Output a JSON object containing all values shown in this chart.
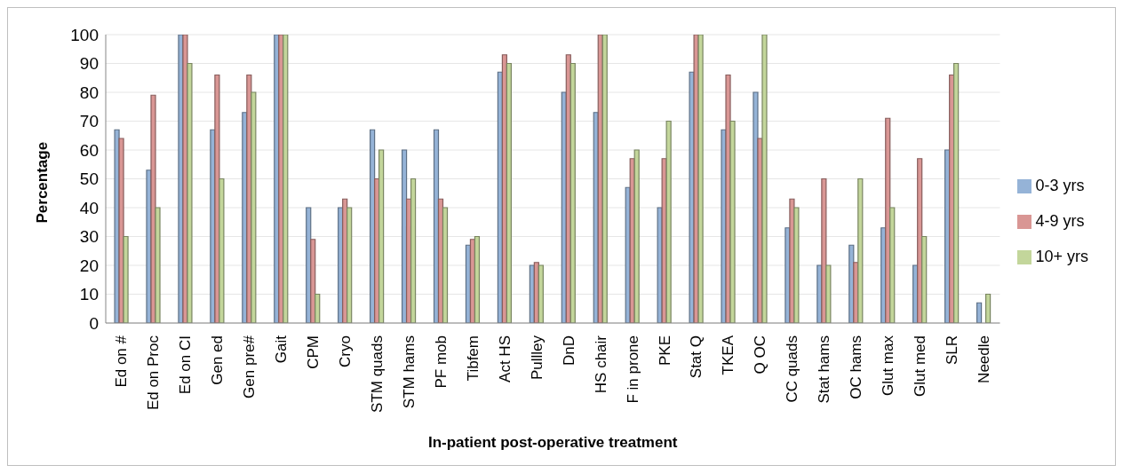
{
  "chart_data": {
    "type": "bar",
    "xlabel": "In-patient post-operative treatment",
    "ylabel": "Percentage",
    "categories": [
      "Ed on #",
      "Ed on Proc",
      "Ed on CI",
      "Gen ed",
      "Gen pre#",
      "Gait",
      "CPM",
      "Cryo",
      "STM quads",
      "STM hams",
      "PF mob",
      "Tibfem",
      "Act HS",
      "Pullley",
      "DnD",
      "HS chair",
      "F in prone",
      "PKE",
      "Stat Q",
      "TKEA",
      "Q OC",
      "CC quads",
      "Stat hams",
      "OC hams",
      "Glut max",
      "Glut med",
      "SLR",
      "Needle"
    ],
    "series": [
      {
        "name": "0-3 yrs",
        "color": "#95b3d7",
        "values": [
          67,
          53,
          100,
          67,
          73,
          100,
          40,
          40,
          67,
          60,
          67,
          27,
          87,
          20,
          80,
          73,
          47,
          40,
          87,
          67,
          80,
          33,
          20,
          27,
          33,
          20,
          60,
          7
        ]
      },
      {
        "name": "4-9 yrs",
        "color": "#d99694",
        "values": [
          64,
          79,
          100,
          86,
          86,
          100,
          29,
          43,
          50,
          43,
          43,
          29,
          93,
          21,
          93,
          100,
          57,
          57,
          100,
          86,
          64,
          43,
          50,
          21,
          71,
          57,
          86,
          0
        ]
      },
      {
        "name": "10+ yrs",
        "color": "#c3d69b",
        "values": [
          30,
          40,
          90,
          50,
          80,
          100,
          10,
          40,
          60,
          50,
          40,
          30,
          90,
          20,
          90,
          100,
          60,
          70,
          100,
          70,
          100,
          40,
          20,
          50,
          40,
          30,
          90,
          10
        ]
      }
    ],
    "ylim": [
      0,
      100
    ],
    "yticks": [
      0,
      10,
      20,
      30,
      40,
      50,
      60,
      70,
      80,
      90,
      100
    ],
    "grid": "y",
    "legend": "right"
  }
}
